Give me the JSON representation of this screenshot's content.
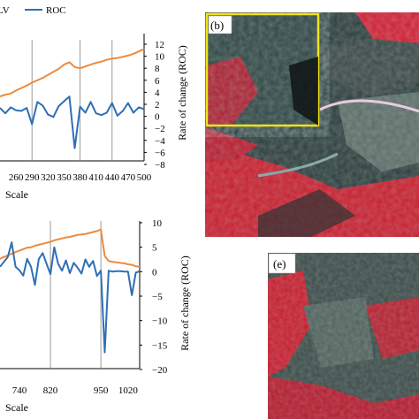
{
  "legend": {
    "lv_label": "LV",
    "roc_label": "ROC",
    "lv_color": "#ed8a3c",
    "roc_color": "#2e6fb5"
  },
  "panels": {
    "b": "(b)",
    "e": "(e)"
  },
  "chart_data": [
    {
      "type": "line",
      "ylabel_right": "Rate of change (ROC)",
      "xlabel": "Scale",
      "x_ticks": [
        "260",
        "290",
        "320",
        "350",
        "380",
        "410",
        "440",
        "470",
        "500"
      ],
      "y_right_ticks": [
        12,
        10,
        8,
        6,
        4,
        2,
        0,
        -2,
        -4,
        -6,
        -8
      ],
      "y_right_lim": [
        -8,
        12
      ],
      "vlines_at_scale": [
        290,
        380,
        440
      ],
      "x": [
        230,
        240,
        250,
        260,
        270,
        280,
        290,
        300,
        310,
        320,
        330,
        340,
        350,
        360,
        370,
        380,
        390,
        400,
        410,
        420,
        430,
        440,
        450,
        460,
        470,
        480,
        490,
        500
      ],
      "series": [
        {
          "name": "LV",
          "color": "#ed8a3c",
          "values": [
            3.3,
            3.6,
            3.8,
            4.3,
            4.7,
            5.1,
            5.6,
            6.0,
            6.4,
            6.9,
            7.4,
            7.9,
            8.6,
            9.0,
            8.2,
            8.0,
            8.3,
            8.6,
            8.9,
            9.1,
            9.4,
            9.6,
            9.7,
            9.9,
            10.1,
            10.4,
            10.8,
            11.2
          ]
        },
        {
          "name": "ROC",
          "color": "#2e6fb5",
          "values": [
            1.4,
            0.5,
            1.5,
            1.0,
            0.9,
            1.4,
            -1.3,
            2.4,
            1.8,
            0.3,
            -0.1,
            1.7,
            2.5,
            3.3,
            -5.3,
            1.6,
            0.6,
            2.4,
            0.5,
            0.2,
            0.6,
            2.2,
            0.1,
            0.9,
            2.2,
            0.6,
            1.5,
            1.2
          ]
        }
      ]
    },
    {
      "type": "line",
      "ylabel_right": "Rate of change (ROC)",
      "xlabel": "Scale",
      "x_ticks": [
        "740",
        "820",
        "950",
        "1020"
      ],
      "y_right_ticks": [
        10,
        5,
        0,
        -5,
        -10,
        -15,
        -20
      ],
      "y_right_lim": [
        -20,
        10
      ],
      "vlines_at_scale": [
        820,
        950
      ],
      "x": [
        690,
        700,
        710,
        720,
        730,
        740,
        750,
        760,
        770,
        780,
        790,
        800,
        810,
        820,
        830,
        840,
        850,
        860,
        870,
        880,
        890,
        900,
        910,
        920,
        930,
        940,
        950,
        960,
        970,
        980,
        990,
        1000,
        1010,
        1020,
        1030,
        1040,
        1050
      ],
      "series": [
        {
          "name": "LV",
          "color": "#ed8a3c",
          "values": [
            2.6,
            3.0,
            3.3,
            3.7,
            4.0,
            4.3,
            4.6,
            4.9,
            5.0,
            5.3,
            5.5,
            5.7,
            5.9,
            6.1,
            6.4,
            6.6,
            6.8,
            7.0,
            7.1,
            7.3,
            7.5,
            7.6,
            7.7,
            7.9,
            8.1,
            8.3,
            8.6,
            3.2,
            2.2,
            2.0,
            1.9,
            1.8,
            1.7,
            1.5,
            1.4,
            1.1,
            1.0
          ]
        },
        {
          "name": "ROC",
          "color": "#2e6fb5",
          "values": [
            1.0,
            2.0,
            3.0,
            6.0,
            1.0,
            0.3,
            -0.8,
            2.6,
            1.0,
            -2.7,
            2.6,
            3.8,
            1.6,
            -0.5,
            5.0,
            1.6,
            0.2,
            2.3,
            -0.3,
            1.8,
            0.8,
            -0.4,
            2.5,
            1.0,
            2.2,
            -0.9,
            0.2,
            -16.5,
            0.2,
            0.0,
            0.1,
            0.1,
            0.0,
            0.0,
            -4.8,
            -0.2,
            0.1
          ]
        }
      ]
    }
  ]
}
